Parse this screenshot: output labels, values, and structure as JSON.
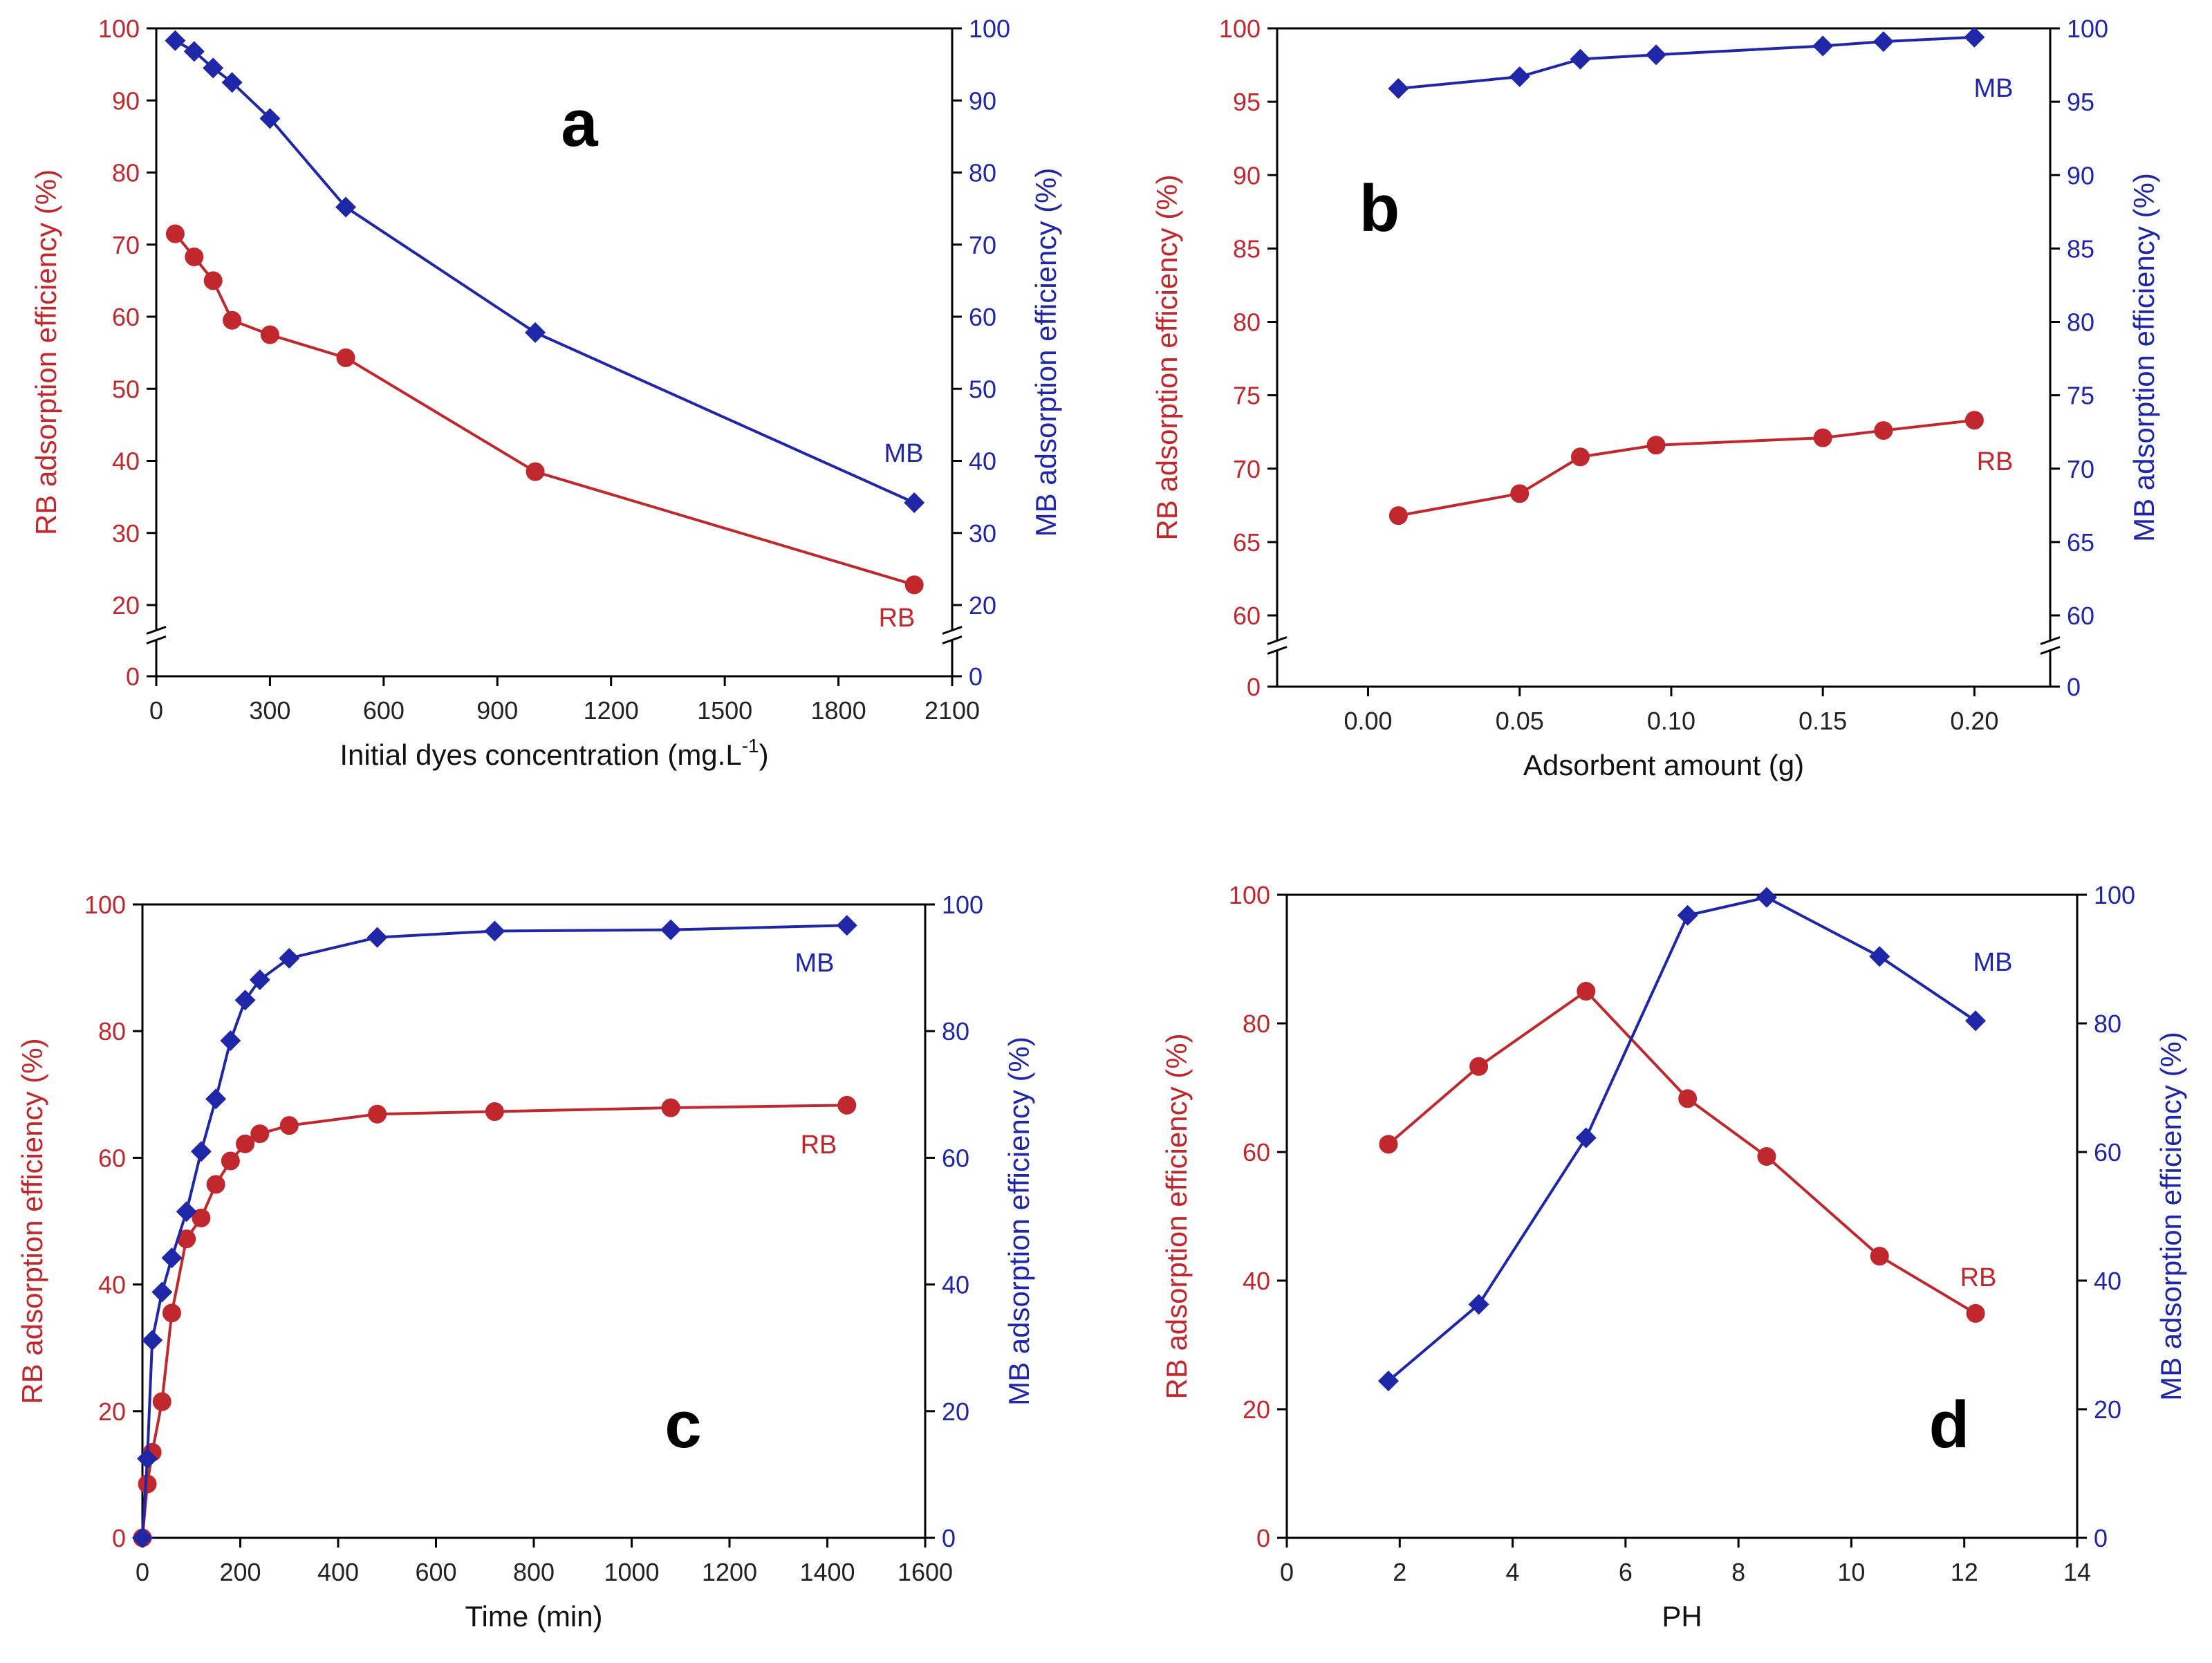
{
  "colors": {
    "rb": "#c0282d",
    "mb": "#1f26a8",
    "axis": "#000000"
  },
  "chart_data": [
    {
      "type": "line",
      "panel": "a",
      "xlabel_main": "Initial dyes concentration (mg.L",
      "xlabel_sup": "-1",
      "xlabel_tail": ")",
      "ylabel_left": "RB adsorption efficiency (%)",
      "ylabel_right": "MB adsorption efficiency (%)",
      "xlim": [
        0,
        2100
      ],
      "x_ticks": [
        0,
        300,
        600,
        900,
        1200,
        1500,
        1800,
        2100
      ],
      "x_tick_labels": [
        "0",
        "300",
        "600",
        "900",
        "1200",
        "1500",
        "1800",
        "2100"
      ],
      "y_ticks": [
        0,
        20,
        30,
        40,
        50,
        60,
        70,
        80,
        90,
        100
      ],
      "y_tick_labels": [
        "0",
        "20",
        "30",
        "40",
        "50",
        "60",
        "70",
        "80",
        "90",
        "100"
      ],
      "axis_break": {
        "lower": 0,
        "upper": 20
      },
      "series": [
        {
          "name": "RB",
          "label": "RB",
          "marker": "circle",
          "x": [
            50,
            100,
            150,
            200,
            300,
            500,
            1000,
            2000
          ],
          "values": [
            71.5,
            68.3,
            65,
            59.5,
            57.5,
            54.3,
            38.5,
            22.8
          ]
        },
        {
          "name": "MB",
          "label": "MB",
          "marker": "diamond",
          "x": [
            50,
            100,
            150,
            200,
            300,
            500,
            1000,
            2000
          ],
          "values": [
            98.3,
            96.8,
            94.5,
            92.5,
            87.5,
            75.2,
            57.8,
            34.2
          ]
        }
      ]
    },
    {
      "type": "line",
      "panel": "b",
      "xlabel_main": "Adsorbent amount (g)",
      "xlabel_sup": "",
      "xlabel_tail": "",
      "ylabel_left": "RB adsorption efficiency (%)",
      "ylabel_right": "MB adsorption efficiency (%)",
      "xlim": [
        -0.03,
        0.225
      ],
      "x_ticks": [
        0.0,
        0.05,
        0.1,
        0.15,
        0.2
      ],
      "x_tick_labels": [
        "0.00",
        "0.05",
        "0.10",
        "0.15",
        "0.20"
      ],
      "y_ticks": [
        0,
        60,
        65,
        70,
        75,
        80,
        85,
        90,
        95,
        100
      ],
      "y_tick_labels": [
        "0",
        "60",
        "65",
        "70",
        "75",
        "80",
        "85",
        "90",
        "95",
        "100"
      ],
      "axis_break": {
        "lower": 0,
        "upper": 60
      },
      "series": [
        {
          "name": "RB",
          "label": "RB",
          "marker": "circle",
          "x": [
            0.01,
            0.05,
            0.07,
            0.095,
            0.15,
            0.17,
            0.2
          ],
          "values": [
            66.8,
            68.3,
            70.8,
            71.6,
            72.1,
            72.6,
            73.3
          ]
        },
        {
          "name": "MB",
          "label": "MB",
          "marker": "diamond",
          "x": [
            0.01,
            0.05,
            0.07,
            0.095,
            0.15,
            0.17,
            0.2
          ],
          "values": [
            95.9,
            96.7,
            97.9,
            98.2,
            98.8,
            99.1,
            99.4
          ]
        }
      ]
    },
    {
      "type": "line",
      "panel": "c",
      "xlabel_main": "Time (min)",
      "xlabel_sup": "",
      "xlabel_tail": "",
      "ylabel_left": "RB adsorption efficiency (%)",
      "ylabel_right": "MB adsorption efficiency (%)",
      "xlim": [
        0,
        1600
      ],
      "x_ticks": [
        0,
        200,
        400,
        600,
        800,
        1000,
        1200,
        1400,
        1600
      ],
      "x_tick_labels": [
        "0",
        "200",
        "400",
        "600",
        "800",
        "1000",
        "1200",
        "1400",
        "1600"
      ],
      "y_ticks": [
        0,
        20,
        40,
        60,
        80,
        100
      ],
      "y_tick_labels": [
        "0",
        "20",
        "40",
        "60",
        "80",
        "100"
      ],
      "axis_break": null,
      "series": [
        {
          "name": "RB",
          "label": "RB",
          "marker": "circle",
          "x": [
            0,
            10,
            20,
            40,
            60,
            90,
            120,
            150,
            180,
            210,
            240,
            300,
            480,
            720,
            1080,
            1440
          ],
          "values": [
            0,
            8.5,
            13.5,
            21.5,
            35.5,
            47.2,
            50.5,
            55.8,
            59.5,
            62.2,
            63.8,
            65.1,
            66.9,
            67.3,
            67.9,
            68.3
          ]
        },
        {
          "name": "MB",
          "label": "MB",
          "marker": "diamond",
          "x": [
            0,
            10,
            20,
            40,
            60,
            90,
            120,
            150,
            180,
            210,
            240,
            300,
            480,
            720,
            1080,
            1440
          ],
          "values": [
            0,
            12.5,
            31.2,
            38.8,
            44.2,
            51.5,
            61.0,
            69.3,
            78.5,
            84.9,
            88.1,
            91.5,
            94.8,
            95.8,
            96.0,
            96.7
          ]
        }
      ]
    },
    {
      "type": "line",
      "panel": "d",
      "xlabel_main": "PH",
      "xlabel_sup": "",
      "xlabel_tail": "",
      "ylabel_left": "RB adsorption efficiency (%)",
      "ylabel_right": "MB adsorption efficiency (%)",
      "xlim": [
        0,
        14
      ],
      "x_ticks": [
        0,
        2,
        4,
        6,
        8,
        10,
        12,
        14
      ],
      "x_tick_labels": [
        "0",
        "2",
        "4",
        "6",
        "8",
        "10",
        "12",
        "14"
      ],
      "y_ticks": [
        0,
        20,
        40,
        60,
        80,
        100
      ],
      "y_tick_labels": [
        "0",
        "20",
        "40",
        "60",
        "80",
        "100"
      ],
      "axis_break": null,
      "series": [
        {
          "name": "RB",
          "label": "RB",
          "marker": "circle",
          "x": [
            1.8,
            3.4,
            5.3,
            7.1,
            8.5,
            10.5,
            12.2
          ],
          "values": [
            61.2,
            73.3,
            85.0,
            68.3,
            59.3,
            43.8,
            34.9
          ]
        },
        {
          "name": "MB",
          "label": "MB",
          "marker": "diamond",
          "x": [
            1.8,
            3.4,
            5.3,
            7.1,
            8.5,
            10.5,
            12.2
          ],
          "values": [
            24.4,
            36.3,
            62.2,
            96.8,
            99.6,
            90.4,
            80.4
          ]
        }
      ]
    }
  ]
}
